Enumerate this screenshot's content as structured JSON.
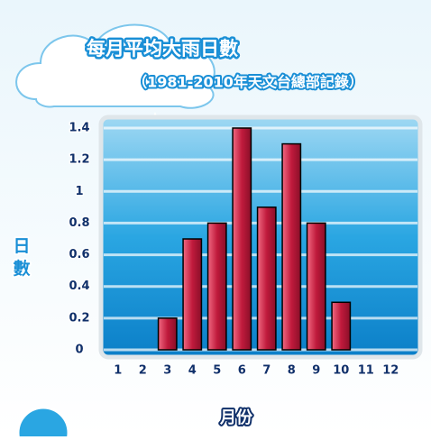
{
  "chart_data": {
    "type": "bar",
    "title": "每月平均大雨日數",
    "subtitle": "（1981-2010年天文台總部記錄）",
    "y_label": "日數",
    "x_label": "月份",
    "categories": [
      "1",
      "2",
      "3",
      "4",
      "5",
      "6",
      "7",
      "8",
      "9",
      "10",
      "11",
      "12"
    ],
    "values": [
      0,
      0,
      0.2,
      0.7,
      0.8,
      1.4,
      0.9,
      1.3,
      0.8,
      0.3,
      0,
      0
    ],
    "color": "#c01a3c",
    "ylim": [
      0,
      1.4
    ],
    "yticks": [
      0,
      0.2,
      0.4,
      0.6,
      0.8,
      1,
      1.2,
      1.4
    ],
    "grid": true
  }
}
